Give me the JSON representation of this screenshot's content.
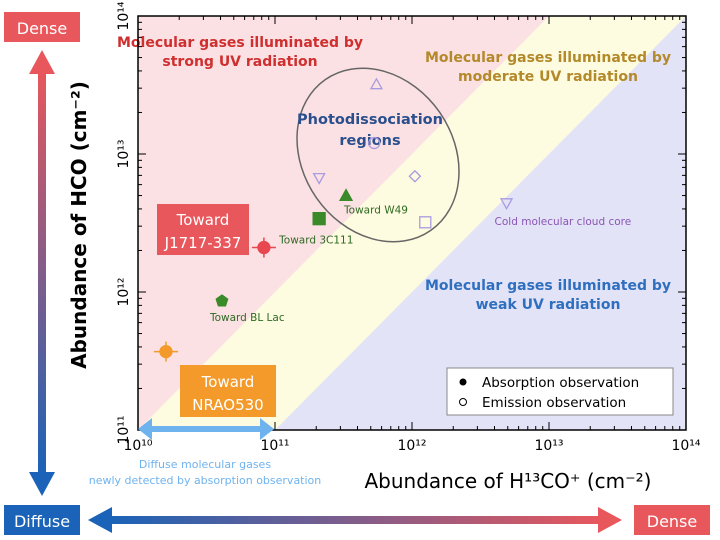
{
  "chart_data": {
    "type": "scatter",
    "xlabel": "Abundance of H¹³CO⁺ (cm⁻²)",
    "ylabel": "Abundance of HCO (cm⁻²)",
    "x_scale": "log",
    "y_scale": "log",
    "xlim": [
      10000000000.0,
      100000000000000.0
    ],
    "ylim": [
      100000000000.0,
      100000000000000.0
    ],
    "x_ticks": [
      "10¹⁰",
      "10¹¹",
      "10¹²",
      "10¹³",
      "10¹⁴"
    ],
    "y_ticks": [
      "10¹¹",
      "10¹²",
      "10¹³",
      "10¹⁴"
    ],
    "grid": false,
    "regions": [
      {
        "label_lines": [
          "Molecular gases illuminated by",
          "strong UV radiation"
        ],
        "condition": "HCO > 10 × H13CO+",
        "color": "#fbe1e4",
        "text_color": "#cf2f2f"
      },
      {
        "label_lines": [
          "Molecular gases illuminated by",
          "moderate UV radiation"
        ],
        "condition": "H13CO+ < HCO < 10 × H13CO+",
        "color": "#fdfbe0",
        "text_color": "#b3892a"
      },
      {
        "label_lines": [
          "Molecular gases illuminated by",
          "weak UV radiation"
        ],
        "condition": "HCO < H13CO+",
        "color": "#e3e3f7",
        "text_color": "#2f6fc0"
      }
    ],
    "pdr_label_lines": [
      "Photodissociation",
      "regions"
    ],
    "points": [
      {
        "x": 16000000000.0,
        "y": 370000000000.0,
        "marker": "circle",
        "filled": true,
        "color": "#f39a2a",
        "errorbars": true,
        "label": ""
      },
      {
        "x": 83000000000.0,
        "y": 2100000000000.0,
        "marker": "circle",
        "filled": true,
        "color": "#e8474f",
        "errorbars": true,
        "label": ""
      },
      {
        "x": 41000000000.0,
        "y": 860000000000.0,
        "marker": "pentagon",
        "filled": true,
        "color": "#3a8a2a",
        "label": "Toward BL Lac"
      },
      {
        "x": 210000000000.0,
        "y": 3400000000000.0,
        "marker": "square",
        "filled": true,
        "color": "#3a8a2a",
        "label": "Toward 3C111"
      },
      {
        "x": 330000000000.0,
        "y": 5000000000000.0,
        "marker": "triangle-up",
        "filled": true,
        "color": "#3a8a2a",
        "label": "Toward W49"
      },
      {
        "x": 550000000000.0,
        "y": 32000000000000.0,
        "marker": "triangle-up",
        "filled": false,
        "color": "#a89be0",
        "label": ""
      },
      {
        "x": 530000000000.0,
        "y": 12000000000000.0,
        "marker": "circle",
        "filled": false,
        "color": "#a89be0",
        "label": ""
      },
      {
        "x": 210000000000.0,
        "y": 6700000000000.0,
        "marker": "triangle-down",
        "filled": false,
        "color": "#a89be0",
        "label": ""
      },
      {
        "x": 1050000000000.0,
        "y": 6900000000000.0,
        "marker": "diamond",
        "filled": false,
        "color": "#a89be0",
        "label": ""
      },
      {
        "x": 1250000000000.0,
        "y": 3200000000000.0,
        "marker": "square",
        "filled": false,
        "color": "#a89be0",
        "label": ""
      },
      {
        "x": 4900000000000.0,
        "y": 4400000000000.0,
        "marker": "triangle-down",
        "filled": false,
        "color": "#a89be0",
        "label": "Cold molecular cloud core"
      }
    ],
    "legend": {
      "placement": "bottom-right",
      "entries": [
        "Absorption observation",
        "Emission observation"
      ]
    },
    "callouts": {
      "j1717": {
        "lines": [
          "Toward",
          "J1717-337"
        ],
        "color": "#e8575c"
      },
      "nrao": {
        "lines": [
          "Toward",
          "NRAO530"
        ],
        "color": "#f39a2a"
      },
      "diffuse_range": {
        "lines": [
          "Diffuse molecular gases",
          "newly detected by absorption observation"
        ],
        "color": "#6fb3ee",
        "x_range": [
          10000000000.0,
          100000000000.0
        ]
      }
    }
  },
  "axes_arrows": {
    "vertical_top": "Dense",
    "vertical_bottom": "Diffuse",
    "horizontal_left": "Diffuse",
    "horizontal_right": "Dense",
    "dense_color": "#e8575c",
    "diffuse_color": "#1a63b8"
  }
}
